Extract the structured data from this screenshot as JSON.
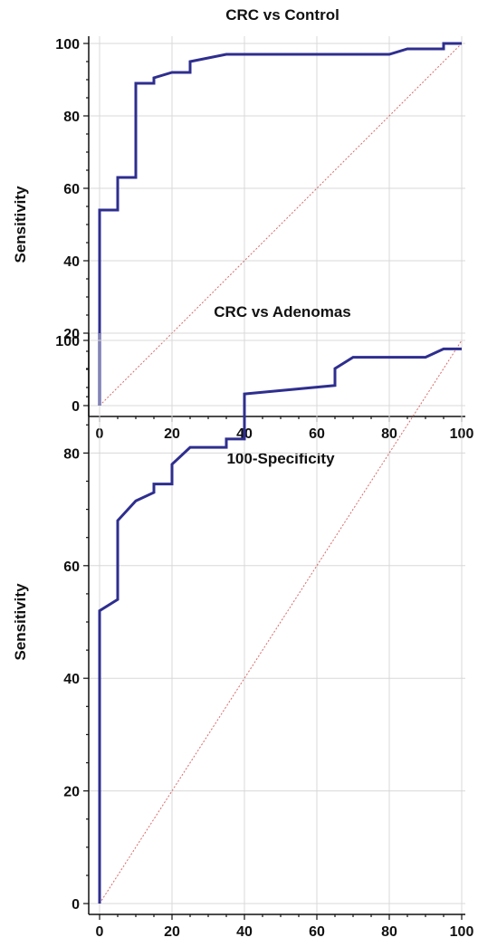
{
  "chart_data": [
    {
      "type": "line",
      "title": "CRC vs Control",
      "xlabel": "100-Specificity",
      "ylabel": "Sensitivity",
      "xlim": [
        0,
        100
      ],
      "ylim": [
        0,
        100
      ],
      "xticks": [
        "0",
        "20",
        "40",
        "60",
        "80",
        "100"
      ],
      "yticks": [
        "0",
        "20",
        "40",
        "60",
        "80",
        "100"
      ],
      "grid": true,
      "colors": {
        "roc": "#2e2e8f",
        "reference": "#d86a6a"
      },
      "series": [
        {
          "x": [
            0,
            0,
            5,
            5,
            10,
            10,
            15,
            15,
            20,
            25,
            25,
            35,
            80,
            85,
            95,
            95,
            100
          ],
          "y": [
            0,
            54,
            54,
            63,
            63,
            89,
            89,
            90.5,
            92,
            92,
            95,
            97,
            97,
            98.5,
            98.5,
            100,
            100
          ]
        },
        {
          "x": [
            0,
            100
          ],
          "y": [
            0,
            100
          ]
        }
      ]
    },
    {
      "type": "line",
      "title": "CRC vs Adenomas",
      "xlabel": "100-Specificity",
      "ylabel": "Sensitivity",
      "xlim": [
        0,
        100
      ],
      "ylim": [
        0,
        100
      ],
      "xticks": [
        "0",
        "20",
        "40",
        "60",
        "80",
        "100"
      ],
      "yticks": [
        "0",
        "20",
        "40",
        "60",
        "80",
        "100"
      ],
      "grid": true,
      "colors": {
        "roc": "#2e2e8f",
        "reference": "#d86a6a"
      },
      "series": [
        {
          "x": [
            0,
            0,
            5,
            5,
            10,
            15,
            15,
            20,
            20,
            25,
            35,
            35,
            40,
            40,
            65,
            65,
            70,
            90,
            95,
            100
          ],
          "y": [
            0,
            52,
            54,
            68,
            71.5,
            73,
            74.5,
            74.5,
            78,
            81,
            81,
            82.5,
            82.5,
            90.5,
            92,
            95,
            97,
            97,
            98.5,
            98.5
          ]
        },
        {
          "x": [
            0,
            100
          ],
          "y": [
            0,
            100
          ]
        }
      ]
    }
  ]
}
